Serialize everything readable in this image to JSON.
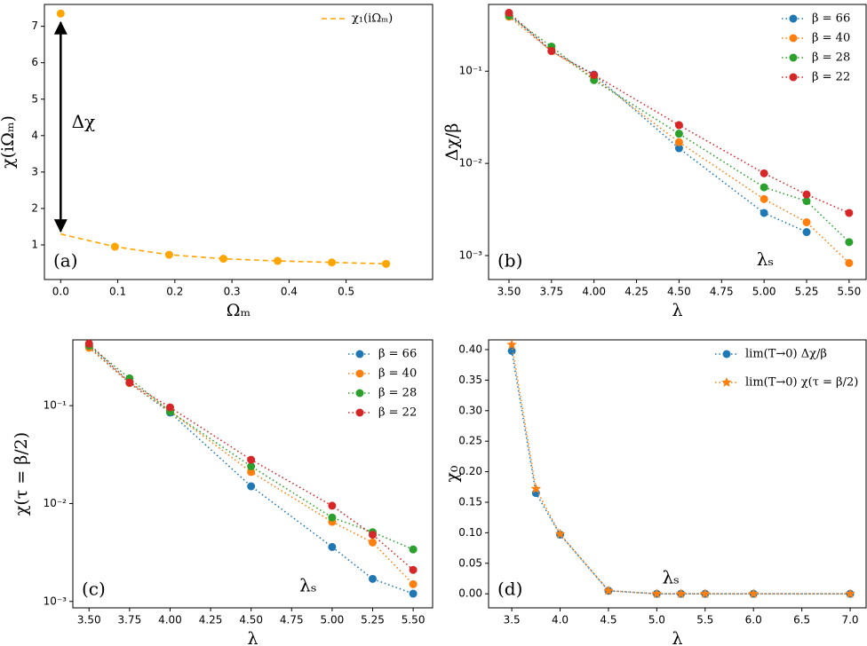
{
  "chart_data": [
    {
      "type": "line",
      "xlabel": "Ωₘ",
      "ylabel": "χ(iΩₘ)",
      "panel_label": "(a)",
      "annotations": [
        "Δχ"
      ],
      "legend": "upper right",
      "x": [
        0,
        0.095,
        0.19,
        0.285,
        0.38,
        0.475,
        0.57
      ],
      "series": [
        {
          "name": "χ₁(iΩₘ)",
          "color": "#ffa500",
          "linestyle": "dashed",
          "marker": "none",
          "values": [
            1.3,
            0.95,
            0.73,
            0.62,
            0.56,
            0.52,
            0.48
          ]
        },
        {
          "color": "#ffa500",
          "linestyle": "none",
          "marker": "circle",
          "values": [
            7.35,
            0.95,
            0.73,
            0.62,
            0.56,
            0.52,
            0.48
          ]
        }
      ],
      "xlim": [
        -0.0285,
        0.6515
      ],
      "ylim": [
        0.05,
        7.6
      ],
      "xticks": [
        {
          "value": 0,
          "label": "0.0"
        },
        {
          "value": 0.1,
          "label": "0.1"
        },
        {
          "value": 0.2,
          "label": "0.2"
        },
        {
          "value": 0.3,
          "label": "0.3"
        },
        {
          "value": 0.4,
          "label": "0.4"
        },
        {
          "value": 0.5,
          "label": "0.5"
        }
      ],
      "yticks": [
        1,
        2,
        3,
        4,
        5,
        6,
        7
      ],
      "yscale": "linear"
    },
    {
      "type": "line",
      "xlabel": "λ",
      "ylabel": "Δχ/β",
      "panel_label": "(b)",
      "annotations": [
        "λₛ"
      ],
      "legend": "upper right",
      "x": [
        3.5,
        3.75,
        4.0,
        4.5,
        5.0,
        5.25,
        5.5
      ],
      "series": [
        {
          "name": "β = 66",
          "color": "#1f77b4",
          "linestyle": "dotted",
          "marker": "circle",
          "values": [
            0.42,
            0.165,
            0.092,
            0.0146,
            0.0029,
            0.0018,
            null
          ]
        },
        {
          "name": "β = 40",
          "color": "#ff7f0e",
          "linestyle": "dotted",
          "marker": "circle",
          "values": [
            0.39,
            0.165,
            0.085,
            0.017,
            0.0041,
            0.0023,
            0.00083
          ]
        },
        {
          "name": "β = 28",
          "color": "#2ca02c",
          "linestyle": "dotted",
          "marker": "circle",
          "values": [
            0.4,
            0.185,
            0.08,
            0.021,
            0.0055,
            0.0039,
            0.0014
          ]
        },
        {
          "name": "β = 22",
          "color": "#d62728",
          "linestyle": "dotted",
          "marker": "circle",
          "values": [
            0.43,
            0.166,
            0.091,
            0.026,
            0.0078,
            0.0046,
            0.0029
          ]
        }
      ],
      "xlim": [
        3.38,
        5.6
      ],
      "ylim": [
        0.00055,
        0.53
      ],
      "yscale": "log",
      "xticks": [
        {
          "value": 3.5,
          "label": "3.50"
        },
        {
          "value": 3.75,
          "label": "3.75"
        },
        {
          "value": 4.0,
          "label": "4.00"
        },
        {
          "value": 4.25,
          "label": "4.25"
        },
        {
          "value": 4.5,
          "label": "4.50"
        },
        {
          "value": 4.75,
          "label": "4.75"
        },
        {
          "value": 5.0,
          "label": "5.00"
        },
        {
          "value": 5.25,
          "label": "5.25"
        },
        {
          "value": 5.5,
          "label": "5.50"
        }
      ],
      "yticks": [
        {
          "value": 0.001,
          "label": "10⁻³"
        },
        {
          "value": 0.01,
          "label": "10⁻²"
        },
        {
          "value": 0.1,
          "label": "10⁻¹"
        }
      ]
    },
    {
      "type": "line",
      "xlabel": "λ",
      "ylabel": "χ(τ = β/2)",
      "panel_label": "(c)",
      "annotations": [
        "λₛ"
      ],
      "legend": "upper right",
      "x": [
        3.5,
        3.75,
        4.0,
        4.5,
        5.0,
        5.25,
        5.5
      ],
      "series": [
        {
          "name": "β = 66",
          "color": "#1f77b4",
          "linestyle": "dotted",
          "marker": "circle",
          "values": [
            0.4,
            0.17,
            0.085,
            0.015,
            0.0036,
            0.0017,
            0.0012
          ]
        },
        {
          "name": "β = 40",
          "color": "#ff7f0e",
          "linestyle": "dotted",
          "marker": "circle",
          "values": [
            0.39,
            0.17,
            0.088,
            0.021,
            0.0065,
            0.004,
            0.0015
          ]
        },
        {
          "name": "β = 28",
          "color": "#2ca02c",
          "linestyle": "dotted",
          "marker": "circle",
          "values": [
            0.41,
            0.19,
            0.087,
            0.024,
            0.0072,
            0.0051,
            0.0034
          ]
        },
        {
          "name": "β = 22",
          "color": "#d62728",
          "linestyle": "dotted",
          "marker": "circle",
          "values": [
            0.43,
            0.172,
            0.096,
            0.028,
            0.0095,
            0.0048,
            0.0021
          ]
        }
      ],
      "xlim": [
        3.4,
        5.62
      ],
      "ylim": [
        0.00086,
        0.47
      ],
      "yscale": "log",
      "xticks": [
        {
          "value": 3.5,
          "label": "3.50"
        },
        {
          "value": 3.75,
          "label": "3.75"
        },
        {
          "value": 4.0,
          "label": "4.00"
        },
        {
          "value": 4.25,
          "label": "4.25"
        },
        {
          "value": 4.5,
          "label": "4.50"
        },
        {
          "value": 4.75,
          "label": "4.75"
        },
        {
          "value": 5.0,
          "label": "5.00"
        },
        {
          "value": 5.25,
          "label": "5.25"
        },
        {
          "value": 5.5,
          "label": "5.50"
        }
      ],
      "yticks": [
        {
          "value": 0.001,
          "label": "10⁻³"
        },
        {
          "value": 0.01,
          "label": "10⁻²"
        },
        {
          "value": 0.1,
          "label": "10⁻¹"
        }
      ]
    },
    {
      "type": "line",
      "xlabel": "λ",
      "ylabel": "χ₀",
      "panel_label": "(d)",
      "annotations": [
        "λₛ"
      ],
      "legend": "upper right",
      "x": [
        3.5,
        3.75,
        4.0,
        4.5,
        5.0,
        5.25,
        5.5,
        6.0,
        7.0
      ],
      "series": [
        {
          "name": "lim(T→0) Δχ/β",
          "color": "#1f77b4",
          "linestyle": "dotted",
          "marker": "circle",
          "values": [
            0.398,
            0.165,
            0.097,
            0.005,
            0.0,
            0.0,
            0.0,
            0.0,
            0.0
          ]
        },
        {
          "name": "lim(T→0) χ(τ = β/2)",
          "color": "#ff7f0e",
          "linestyle": "dotted",
          "marker": "star",
          "values": [
            0.408,
            0.172,
            0.098,
            0.005,
            0.0,
            0.0,
            0.0,
            0.0,
            0.0
          ]
        }
      ],
      "xlim": [
        3.26,
        7.165
      ],
      "ylim": [
        -0.023,
        0.416
      ],
      "yscale": "linear",
      "xticks": [
        3.5,
        {
          "value": 4.0,
          "label": "4.0"
        },
        4.5,
        {
          "value": 5.0,
          "label": "5.0"
        },
        5.5,
        {
          "value": 6.0,
          "label": "6.0"
        },
        6.5,
        {
          "value": 7.0,
          "label": "7.0"
        }
      ],
      "yticks": [
        {
          "value": 0,
          "label": "0.00"
        },
        {
          "value": 0.05,
          "label": "0.05"
        },
        {
          "value": 0.1,
          "label": "0.10"
        },
        {
          "value": 0.15,
          "label": "0.15"
        },
        {
          "value": 0.2,
          "label": "0.20"
        },
        {
          "value": 0.25,
          "label": "0.25"
        },
        {
          "value": 0.3,
          "label": "0.30"
        },
        {
          "value": 0.35,
          "label": "0.35"
        },
        {
          "value": 0.4,
          "label": "0.40"
        }
      ]
    }
  ]
}
